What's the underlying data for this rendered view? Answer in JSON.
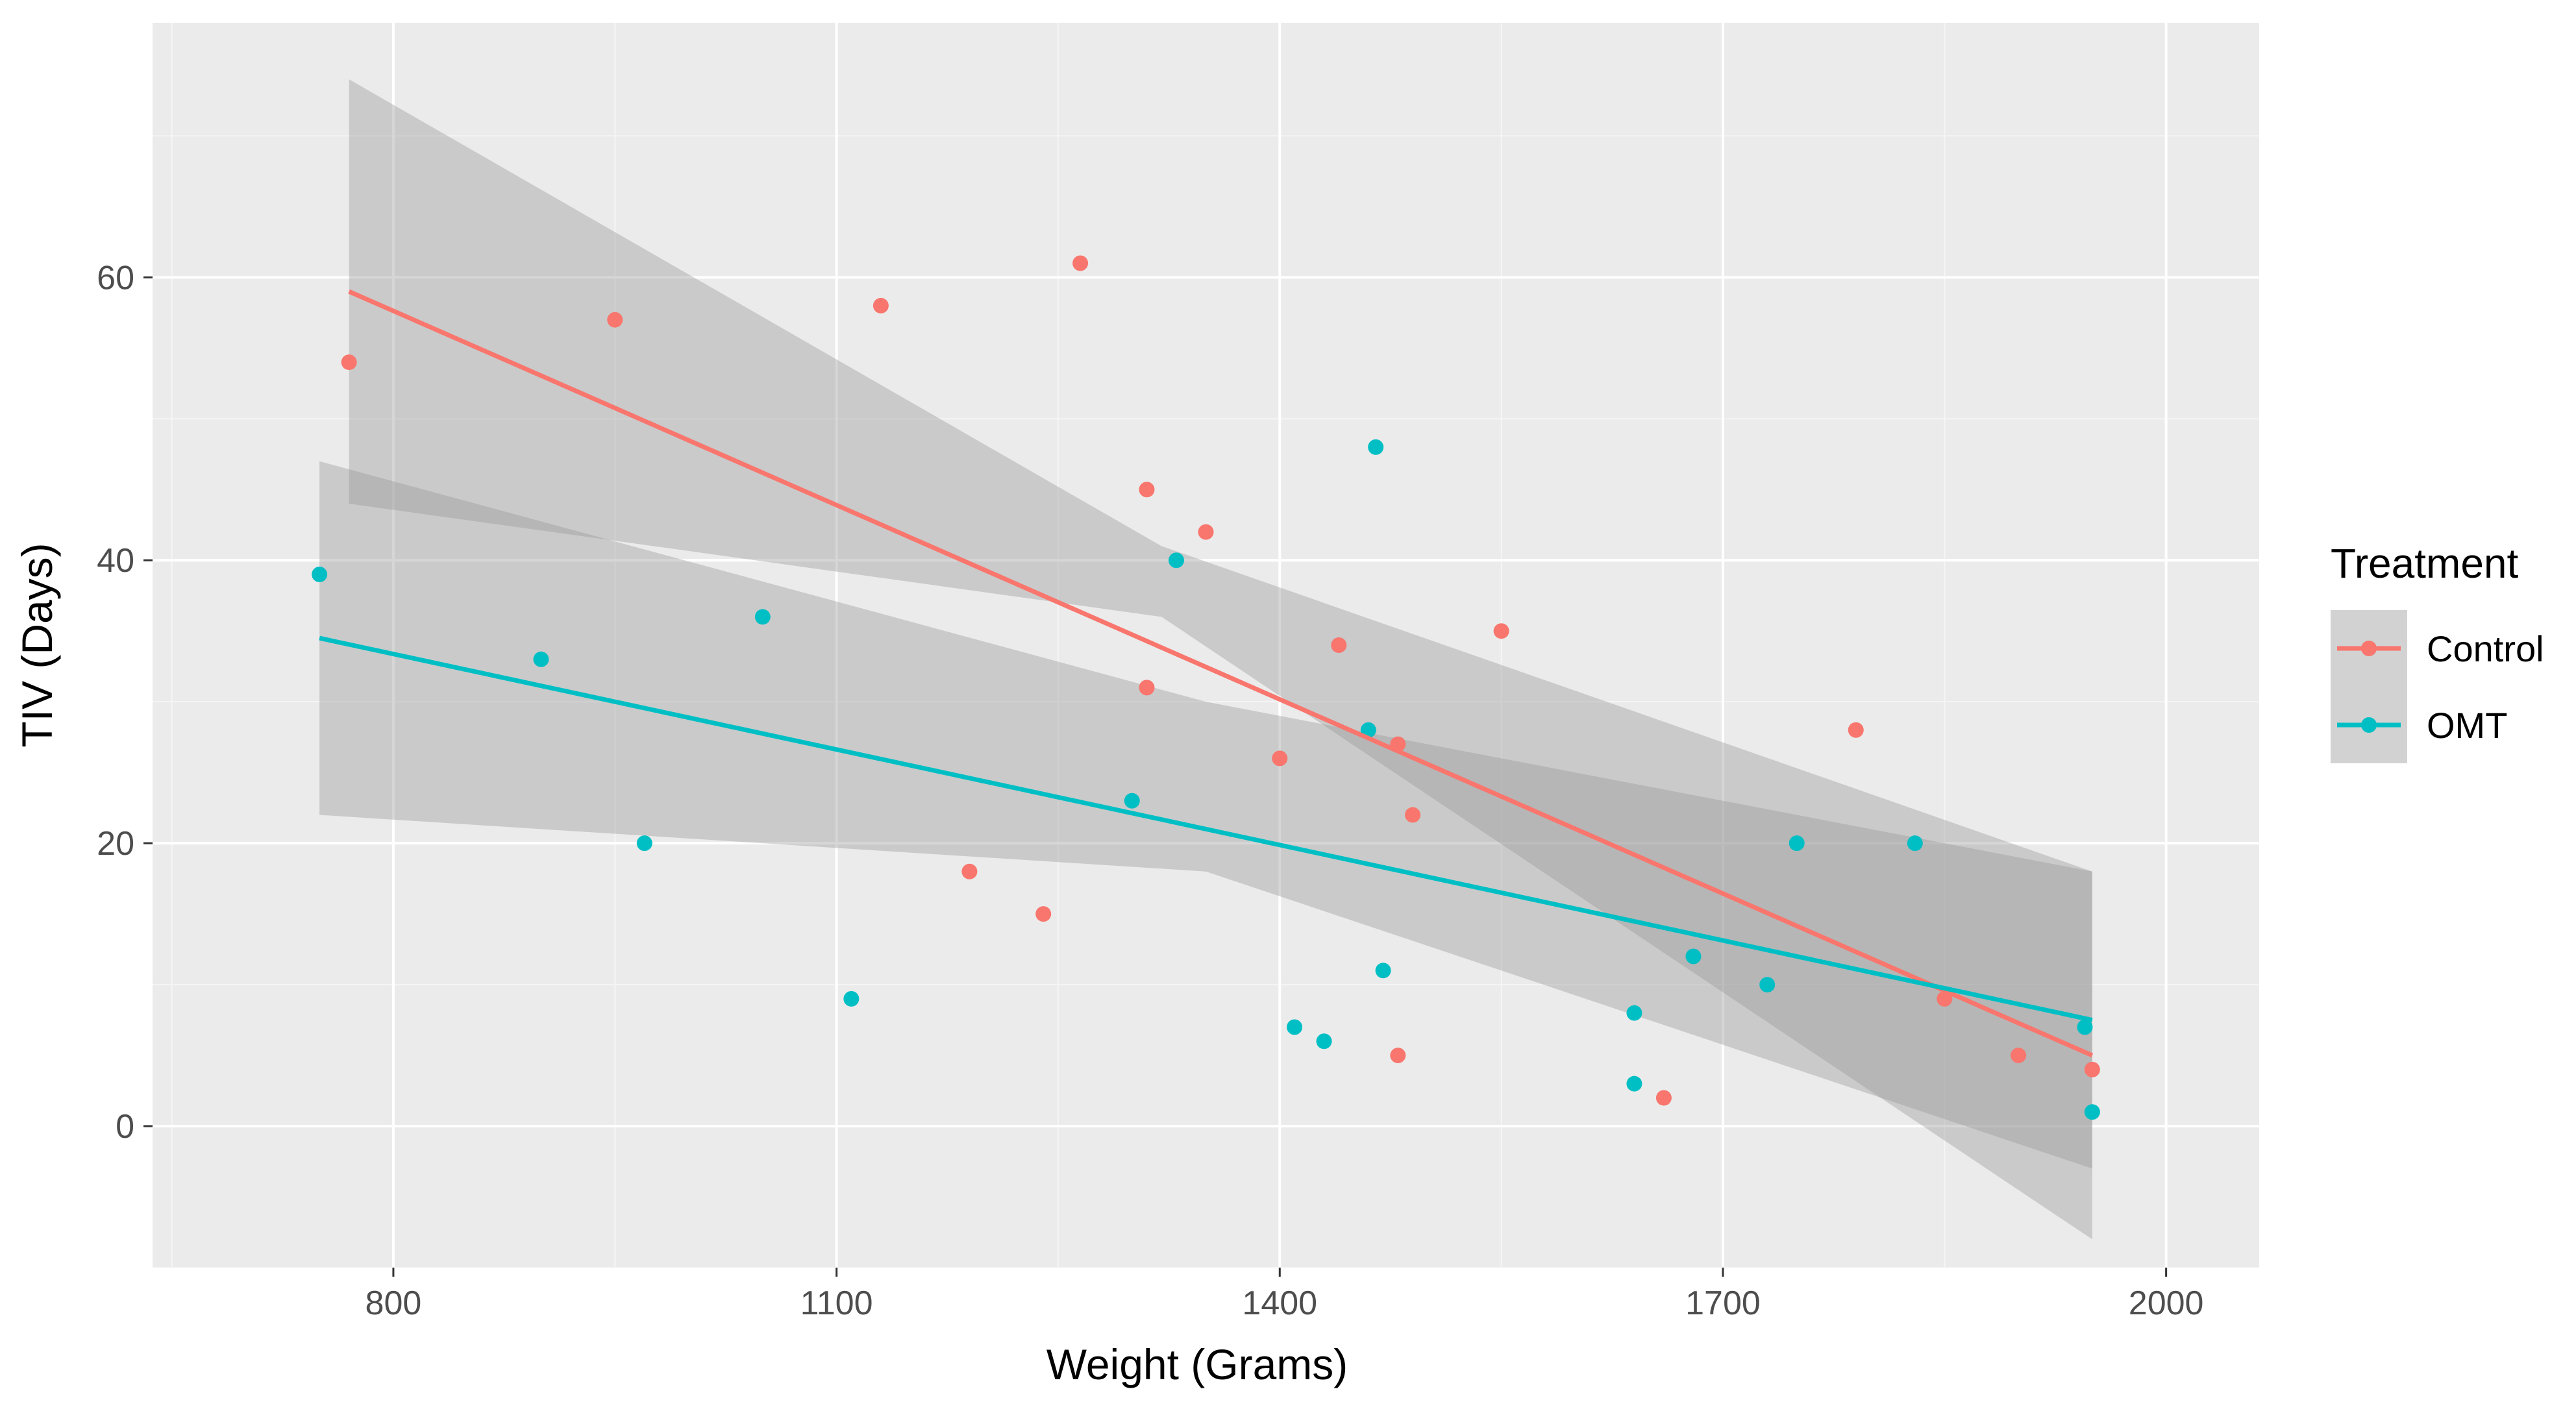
{
  "chart_data": {
    "type": "scatter",
    "title": "",
    "xlabel": "Weight (Grams)",
    "ylabel": "TIV (Days)",
    "xlim": [
      637,
      2063
    ],
    "ylim": [
      -10,
      78
    ],
    "x_ticks": [
      800,
      1100,
      1400,
      1700,
      2000
    ],
    "y_ticks": [
      0,
      20,
      40,
      60
    ],
    "x_tick_labels": [
      "800",
      "1100",
      "1400",
      "1700",
      "2000"
    ],
    "y_tick_labels": [
      "0",
      "20",
      "40",
      "60"
    ],
    "grid": true,
    "legend": {
      "title": "Treatment",
      "position": "right"
    },
    "series": [
      {
        "name": "Control",
        "color": "#F8766D",
        "points": [
          [
            770,
            54
          ],
          [
            950,
            57
          ],
          [
            1130,
            58
          ],
          [
            1265,
            61
          ],
          [
            1310,
            45
          ],
          [
            1310,
            31
          ],
          [
            1350,
            42
          ],
          [
            1400,
            26
          ],
          [
            1440,
            34
          ],
          [
            1480,
            27
          ],
          [
            1490,
            22
          ],
          [
            1550,
            35
          ],
          [
            1190,
            18
          ],
          [
            1240,
            15
          ],
          [
            1480,
            5
          ],
          [
            1660,
            2
          ],
          [
            1790,
            28
          ],
          [
            1850,
            9
          ],
          [
            1900,
            5
          ],
          [
            1950,
            4
          ]
        ],
        "fit": {
          "x_start": 770,
          "y_start": 59,
          "x_end": 1950,
          "y_end": 5
        },
        "ci_band": {
          "upper": [
            [
              770,
              74
            ],
            [
              1320,
              41
            ],
            [
              1950,
              18
            ]
          ],
          "lower": [
            [
              770,
              44
            ],
            [
              1320,
              36
            ],
            [
              1950,
              -8
            ]
          ]
        }
      },
      {
        "name": "OMT",
        "color": "#00BFC4",
        "points": [
          [
            750,
            39
          ],
          [
            900,
            33
          ],
          [
            970,
            20
          ],
          [
            1050,
            36
          ],
          [
            1110,
            9
          ],
          [
            1300,
            23
          ],
          [
            1330,
            40
          ],
          [
            1410,
            7
          ],
          [
            1430,
            6
          ],
          [
            1460,
            28
          ],
          [
            1465,
            48
          ],
          [
            1470,
            11
          ],
          [
            1640,
            8
          ],
          [
            1640,
            3
          ],
          [
            1680,
            12
          ],
          [
            1730,
            10
          ],
          [
            1750,
            20
          ],
          [
            1830,
            20
          ],
          [
            1945,
            7
          ],
          [
            1950,
            1
          ]
        ],
        "fit": {
          "x_start": 750,
          "y_start": 34.5,
          "x_end": 1950,
          "y_end": 7.5
        },
        "ci_band": {
          "upper": [
            [
              750,
              47
            ],
            [
              1350,
              30
            ],
            [
              1950,
              18
            ]
          ],
          "lower": [
            [
              750,
              22
            ],
            [
              1350,
              18
            ],
            [
              1950,
              -3
            ]
          ]
        }
      }
    ]
  }
}
